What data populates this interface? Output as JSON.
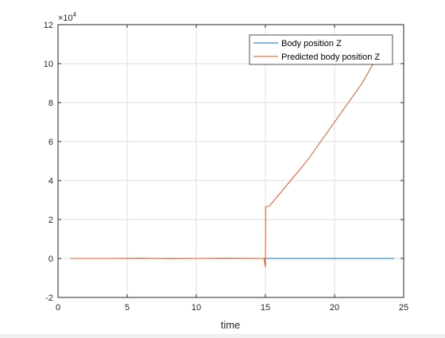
{
  "chart_data": {
    "type": "line",
    "title": "",
    "xlabel": "time",
    "ylabel": "",
    "xlim": [
      0,
      25
    ],
    "ylim": [
      -2,
      12
    ],
    "y_exponent_label": "×10",
    "y_exponent_power": "4",
    "y_scale_multiplier": 10000,
    "x_ticks": [
      0,
      5,
      10,
      15,
      20,
      25
    ],
    "x_tick_labels": [
      "0",
      "5",
      "10",
      "15",
      "20",
      "25"
    ],
    "y_ticks": [
      -2,
      0,
      2,
      4,
      6,
      8,
      10,
      12
    ],
    "y_tick_labels": [
      "-2",
      "0",
      "2",
      "4",
      "6",
      "8",
      "10",
      "12"
    ],
    "grid": true,
    "legend_position": "top-right",
    "series": [
      {
        "name": "Body position Z",
        "color": "#0072BD",
        "points": [
          [
            0.9,
            0
          ],
          [
            15,
            0
          ],
          [
            24.3,
            0
          ]
        ]
      },
      {
        "name": "Predicted body position Z",
        "color": "#D95319",
        "points": [
          [
            0.9,
            0
          ],
          [
            4.0,
            0
          ],
          [
            6.0,
            0.01
          ],
          [
            8.0,
            -0.01
          ],
          [
            10.0,
            0
          ],
          [
            12.0,
            0.01
          ],
          [
            14.9,
            0
          ],
          [
            15.0,
            -0.45
          ],
          [
            15.02,
            2.65
          ],
          [
            15.3,
            2.7
          ],
          [
            18.0,
            5.0
          ],
          [
            20.0,
            7.0
          ],
          [
            22.0,
            9.0
          ],
          [
            23.0,
            10.25
          ]
        ]
      }
    ]
  }
}
